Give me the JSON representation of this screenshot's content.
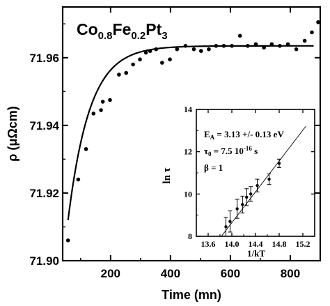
{
  "chart_data": [
    {
      "type": "scatter",
      "main": true,
      "title": "Co0.8Fe0.2Pt3",
      "title_parts": {
        "base1": "Co",
        "sub1": "0.8",
        "base2": "Fe",
        "sub2": "0.2",
        "base3": "Pt",
        "sub3": "3"
      },
      "xlabel": "Time (mn)",
      "ylabel": "ρ (μΩcm)",
      "xlim": [
        40,
        900
      ],
      "ylim": [
        71.9,
        71.975
      ],
      "xticks": [
        200,
        400,
        600,
        800
      ],
      "xtick_labels": [
        "200",
        "400",
        "600",
        "800"
      ],
      "yticks": [
        71.9,
        71.92,
        71.94,
        71.96
      ],
      "ytick_labels": [
        "71.90",
        "71.92",
        "71.94",
        "71.96"
      ],
      "points": [
        {
          "x": 58,
          "y": 71.906
        },
        {
          "x": 92,
          "y": 71.924
        },
        {
          "x": 118,
          "y": 71.933
        },
        {
          "x": 143,
          "y": 71.9435
        },
        {
          "x": 168,
          "y": 71.9445
        },
        {
          "x": 174,
          "y": 71.947
        },
        {
          "x": 198,
          "y": 71.9475
        },
        {
          "x": 228,
          "y": 71.955
        },
        {
          "x": 252,
          "y": 71.9555
        },
        {
          "x": 275,
          "y": 71.958
        },
        {
          "x": 298,
          "y": 71.9595
        },
        {
          "x": 318,
          "y": 71.9615
        },
        {
          "x": 332,
          "y": 71.962
        },
        {
          "x": 352,
          "y": 71.9625
        },
        {
          "x": 372,
          "y": 71.9585
        },
        {
          "x": 398,
          "y": 71.9595
        },
        {
          "x": 422,
          "y": 71.9625
        },
        {
          "x": 450,
          "y": 71.9635
        },
        {
          "x": 478,
          "y": 71.9625
        },
        {
          "x": 502,
          "y": 71.962
        },
        {
          "x": 528,
          "y": 71.9625
        },
        {
          "x": 552,
          "y": 71.9635
        },
        {
          "x": 578,
          "y": 71.9635
        },
        {
          "x": 605,
          "y": 71.9635
        },
        {
          "x": 632,
          "y": 71.9665
        },
        {
          "x": 658,
          "y": 71.9635
        },
        {
          "x": 685,
          "y": 71.964
        },
        {
          "x": 712,
          "y": 71.963
        },
        {
          "x": 738,
          "y": 71.964
        },
        {
          "x": 765,
          "y": 71.9635
        },
        {
          "x": 792,
          "y": 71.964
        },
        {
          "x": 820,
          "y": 71.9625
        },
        {
          "x": 848,
          "y": 71.965
        },
        {
          "x": 872,
          "y": 71.9675
        },
        {
          "x": 893,
          "y": 71.9705
        }
      ],
      "fit": {
        "type": "exponential",
        "y_inf": 71.9635,
        "y0": 71.912,
        "x0": 58,
        "tau": 72,
        "x_end": 880
      }
    },
    {
      "type": "scatter",
      "inset": true,
      "xlabel": "1/kT",
      "ylabel": "ln τ",
      "xlim": [
        13.4,
        15.4
      ],
      "ylim": [
        8,
        14
      ],
      "xticks": [
        13.6,
        14.0,
        14.4,
        14.8,
        15.2
      ],
      "xtick_labels": [
        "13.6",
        "14.0",
        "14.4",
        "14.8",
        "15.2"
      ],
      "yticks": [
        8,
        10,
        12,
        14
      ],
      "ytick_labels": [
        "8",
        "10",
        "12",
        "14"
      ],
      "points": [
        {
          "x": 13.9,
          "y": 8.45,
          "err": 0.45
        },
        {
          "x": 13.97,
          "y": 8.7,
          "err": 0.5
        },
        {
          "x": 14.09,
          "y": 9.3,
          "err": 0.45
        },
        {
          "x": 14.18,
          "y": 9.5,
          "err": 0.4
        },
        {
          "x": 14.25,
          "y": 9.85,
          "err": 0.4
        },
        {
          "x": 14.32,
          "y": 10.0,
          "err": 0.35
        },
        {
          "x": 14.43,
          "y": 10.4,
          "err": 0.3
        },
        {
          "x": 14.63,
          "y": 10.7,
          "err": 0.25
        },
        {
          "x": 14.8,
          "y": 11.45,
          "err": 0.2
        }
      ],
      "fit_line": {
        "x1": 13.7,
        "y1": 7.55,
        "x2": 15.25,
        "y2": 13.2
      },
      "annotations": {
        "ea": {
          "symbol": "E",
          "sub": "A",
          "text": " = 3.13 +/- 0.13 eV"
        },
        "tau0": {
          "symbol": "τ",
          "sub": "0",
          "text": " = 7.5 10",
          "sup": "-16",
          "tail": " s"
        },
        "beta": {
          "text": "β = 1"
        }
      }
    }
  ]
}
